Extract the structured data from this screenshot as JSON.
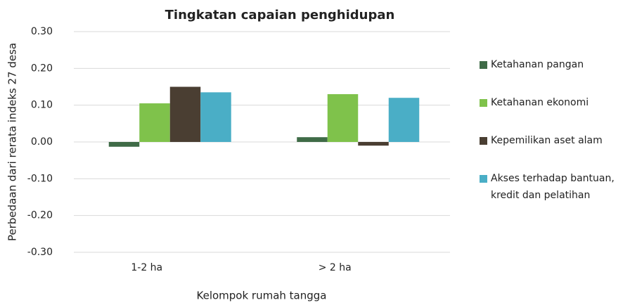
{
  "chart_data": {
    "type": "bar",
    "title": "Tingkatan capaian penghidupan",
    "x_label": "Kelompok rumah tangga",
    "y_label": "Perbedaan dari rerata indeks 27 desa",
    "categories": [
      "1-2 ha",
      "> 2 ha"
    ],
    "series": [
      {
        "name": "Ketahanan pangan",
        "color": "#3f6b47",
        "values": [
          -0.013,
          0.013
        ]
      },
      {
        "name": "Ketahanan ekonomi",
        "color": "#7fc24b",
        "values": [
          0.105,
          0.13
        ]
      },
      {
        "name": "Kepemilikan aset alam",
        "color": "#4a3e32",
        "values": [
          0.15,
          -0.01
        ]
      },
      {
        "name": "Akses terhadap bantuan, kredit dan pelatihan",
        "color": "#4aaec6",
        "values": [
          0.135,
          0.12
        ]
      }
    ],
    "ylim": [
      -0.3,
      0.3
    ],
    "yticks": [
      {
        "value": -0.3,
        "label": "-0.30"
      },
      {
        "value": -0.2,
        "label": "-0.20"
      },
      {
        "value": -0.1,
        "label": "-0.10"
      },
      {
        "value": 0,
        "label": "0.00"
      },
      {
        "value": 0.1,
        "label": "0.10"
      },
      {
        "value": 0.2,
        "label": "0.20"
      },
      {
        "value": 0.3,
        "label": "0.30"
      }
    ],
    "grid": true,
    "legend": "right"
  }
}
